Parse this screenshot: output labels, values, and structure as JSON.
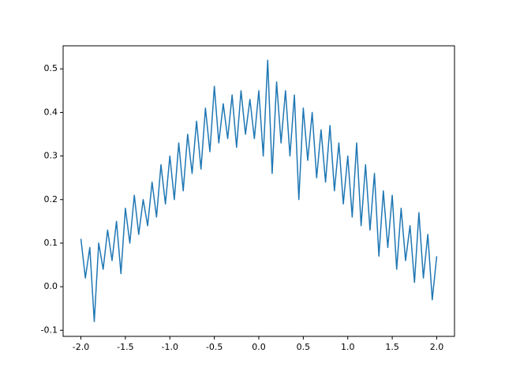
{
  "chart_data": {
    "type": "line",
    "x": [
      -2.0,
      -1.95,
      -1.9,
      -1.85,
      -1.8,
      -1.75,
      -1.7,
      -1.65,
      -1.6,
      -1.55,
      -1.5,
      -1.45,
      -1.4,
      -1.35,
      -1.3,
      -1.25,
      -1.2,
      -1.15,
      -1.1,
      -1.05,
      -1.0,
      -0.95,
      -0.9,
      -0.85,
      -0.8,
      -0.75,
      -0.7,
      -0.65,
      -0.6,
      -0.55,
      -0.5,
      -0.45,
      -0.4,
      -0.35,
      -0.3,
      -0.25,
      -0.2,
      -0.15,
      -0.1,
      -0.05,
      0.0,
      0.05,
      0.1,
      0.15,
      0.2,
      0.25,
      0.3,
      0.35,
      0.4,
      0.45,
      0.5,
      0.55,
      0.6,
      0.65,
      0.7,
      0.75,
      0.8,
      0.85,
      0.9,
      0.95,
      1.0,
      1.05,
      1.1,
      1.15,
      1.2,
      1.25,
      1.3,
      1.35,
      1.4,
      1.45,
      1.5,
      1.55,
      1.6,
      1.65,
      1.7,
      1.75,
      1.8,
      1.85,
      1.9,
      1.95,
      2.0
    ],
    "series": [
      {
        "color": "#1f77b4",
        "values": [
          0.11,
          0.02,
          0.09,
          -0.08,
          0.1,
          0.04,
          0.13,
          0.06,
          0.15,
          0.03,
          0.18,
          0.1,
          0.21,
          0.12,
          0.2,
          0.14,
          0.24,
          0.16,
          0.28,
          0.19,
          0.3,
          0.2,
          0.33,
          0.22,
          0.35,
          0.26,
          0.38,
          0.27,
          0.41,
          0.31,
          0.46,
          0.33,
          0.42,
          0.34,
          0.44,
          0.32,
          0.45,
          0.35,
          0.43,
          0.34,
          0.45,
          0.3,
          0.52,
          0.26,
          0.47,
          0.33,
          0.45,
          0.3,
          0.44,
          0.2,
          0.41,
          0.29,
          0.4,
          0.25,
          0.36,
          0.24,
          0.37,
          0.22,
          0.33,
          0.19,
          0.3,
          0.16,
          0.33,
          0.14,
          0.28,
          0.13,
          0.26,
          0.07,
          0.22,
          0.09,
          0.21,
          0.04,
          0.18,
          0.06,
          0.14,
          0.01,
          0.17,
          0.02,
          0.12,
          -0.03,
          0.07
        ]
      }
    ],
    "xlim": [
      -2.2,
      2.2
    ],
    "ylim": [
      -0.114,
      0.553
    ],
    "xticks": [
      {
        "value": -2,
        "label": "-2.0"
      },
      {
        "value": -1.5,
        "label": "-1.5"
      },
      {
        "value": -1,
        "label": "-1.0"
      },
      {
        "value": -0.5,
        "label": "-0.5"
      },
      {
        "value": 0,
        "label": "0.0"
      },
      {
        "value": 0.5,
        "label": "0.5"
      },
      {
        "value": 1,
        "label": "1.0"
      },
      {
        "value": 1.5,
        "label": "1.5"
      },
      {
        "value": 2,
        "label": "2.0"
      }
    ],
    "yticks": [
      -0.1,
      {
        "value": 0,
        "label": "0.0"
      },
      0.1,
      0.2,
      0.3,
      0.4,
      0.5
    ]
  }
}
